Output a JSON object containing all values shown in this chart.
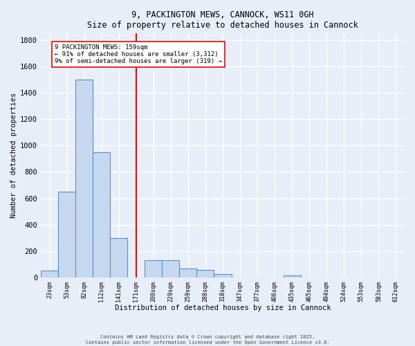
{
  "title_line1": "9, PACKINGTON MEWS, CANNOCK, WS11 0GH",
  "title_line2": "Size of property relative to detached houses in Cannock",
  "xlabel": "Distribution of detached houses by size in Cannock",
  "ylabel": "Number of detached properties",
  "bin_labels": [
    "23sqm",
    "53sqm",
    "82sqm",
    "112sqm",
    "141sqm",
    "171sqm",
    "200sqm",
    "229sqm",
    "259sqm",
    "288sqm",
    "318sqm",
    "347sqm",
    "377sqm",
    "406sqm",
    "435sqm",
    "465sqm",
    "494sqm",
    "524sqm",
    "553sqm",
    "583sqm",
    "612sqm"
  ],
  "bar_values": [
    50,
    650,
    1500,
    950,
    300,
    0,
    130,
    130,
    70,
    60,
    25,
    0,
    0,
    0,
    15,
    0,
    0,
    0,
    0,
    0,
    0
  ],
  "bar_color": "#c5d8f0",
  "bar_edgecolor": "#5a8fc2",
  "vline_x_idx": 5,
  "vline_color": "red",
  "annotation_text": "9 PACKINGTON MEWS: 159sqm\n← 91% of detached houses are smaller (3,312)\n9% of semi-detached houses are larger (319) →",
  "annotation_box_color": "white",
  "annotation_box_edgecolor": "red",
  "ylim": [
    0,
    1850
  ],
  "yticks": [
    0,
    200,
    400,
    600,
    800,
    1000,
    1200,
    1400,
    1600,
    1800
  ],
  "background_color": "#e8eef7",
  "grid_color": "white",
  "footer_line1": "Contains HM Land Registry data © Crown copyright and database right 2025.",
  "footer_line2": "Contains public sector information licensed under the Open Government Licence v3.0."
}
